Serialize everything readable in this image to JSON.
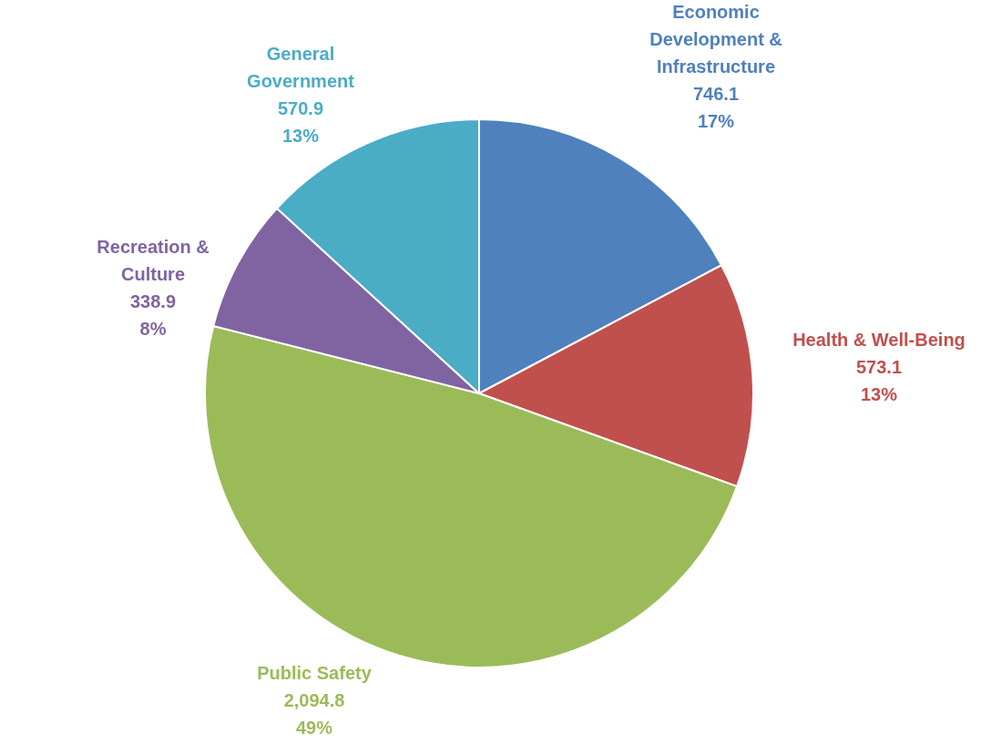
{
  "chart_data": {
    "type": "pie",
    "categories": [
      "Economic Development & Infrastructure",
      "Health & Well-Being",
      "Public Safety",
      "Recreation & Culture",
      "General Government"
    ],
    "values": [
      746.1,
      573.1,
      2094.8,
      338.9,
      570.9
    ],
    "colors": [
      "#4f81bd",
      "#c0504d",
      "#9bbb59",
      "#8064a2",
      "#4bacc6"
    ],
    "value_labels": [
      "746.1\n17%",
      "573.1\n13%",
      "2,094.8\n49%",
      "338.9\n8%",
      "570.9\n13%"
    ],
    "legend": false
  }
}
